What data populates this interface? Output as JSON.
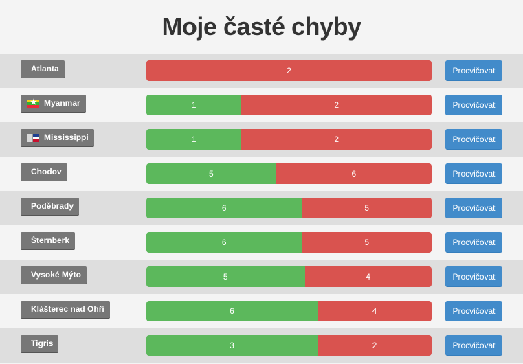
{
  "page": {
    "title": "Moje časté chyby"
  },
  "button_label": "Procvičovat",
  "colors": {
    "correct": "#5cb85c",
    "wrong": "#d9534f",
    "button": "#428bca",
    "label_bg": "#777777"
  },
  "rows": [
    {
      "name": "Atlanta",
      "flag": "",
      "correct": 0,
      "wrong": 2,
      "correct_label": "",
      "wrong_label": "2"
    },
    {
      "name": "Myanmar",
      "flag": "myanmar-flag-icon",
      "correct": 1,
      "wrong": 2,
      "correct_label": "1",
      "wrong_label": "2"
    },
    {
      "name": "Mississippi",
      "flag": "mississippi-flag-icon",
      "correct": 1,
      "wrong": 2,
      "correct_label": "1",
      "wrong_label": "2"
    },
    {
      "name": "Chodov",
      "flag": "",
      "correct": 5,
      "wrong": 6,
      "correct_label": "5",
      "wrong_label": "6"
    },
    {
      "name": "Poděbrady",
      "flag": "",
      "correct": 6,
      "wrong": 5,
      "correct_label": "6",
      "wrong_label": "5"
    },
    {
      "name": "Šternberk",
      "flag": "",
      "correct": 6,
      "wrong": 5,
      "correct_label": "6",
      "wrong_label": "5"
    },
    {
      "name": "Vysoké Mýto",
      "flag": "",
      "correct": 5,
      "wrong": 4,
      "correct_label": "5",
      "wrong_label": "4"
    },
    {
      "name": "Klášterec nad Ohří",
      "flag": "",
      "correct": 6,
      "wrong": 4,
      "correct_label": "6",
      "wrong_label": "4"
    },
    {
      "name": "Tigris",
      "flag": "",
      "correct": 3,
      "wrong": 2,
      "correct_label": "3",
      "wrong_label": "2"
    }
  ]
}
